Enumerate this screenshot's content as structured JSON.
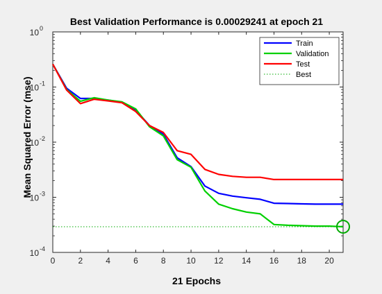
{
  "chart_data": {
    "type": "line",
    "title": "Best Validation Performance is 0.00029241 at epoch 21",
    "xlabel": "21 Epochs",
    "ylabel": "Mean Squared Error  (mse)",
    "xlim": [
      0,
      21
    ],
    "ylim": [
      0.0001,
      1
    ],
    "yscale": "log",
    "xticks": [
      "0",
      "2",
      "4",
      "6",
      "8",
      "10",
      "12",
      "14",
      "16",
      "18",
      "20"
    ],
    "yticks": [
      {
        "base": "10",
        "exp": "0",
        "value": 1
      },
      {
        "base": "10",
        "exp": "-1",
        "value": 0.1
      },
      {
        "base": "10",
        "exp": "-2",
        "value": 0.01
      },
      {
        "base": "10",
        "exp": "-3",
        "value": 0.001
      },
      {
        "base": "10",
        "exp": "-4",
        "value": 0.0001
      }
    ],
    "x": [
      0,
      1,
      2,
      3,
      4,
      5,
      6,
      7,
      8,
      9,
      10,
      11,
      12,
      13,
      14,
      15,
      16,
      17,
      18,
      19,
      20,
      21
    ],
    "series": [
      {
        "name": "Train",
        "color": "#0000ff",
        "style": "solid",
        "values": [
          0.26,
          0.095,
          0.062,
          0.062,
          0.058,
          0.053,
          0.038,
          0.02,
          0.014,
          0.0052,
          0.0036,
          0.0016,
          0.00118,
          0.00105,
          0.00098,
          0.00092,
          0.00078,
          0.00077,
          0.00076,
          0.00075,
          0.00075,
          0.00075
        ]
      },
      {
        "name": "Validation",
        "color": "#00d000",
        "style": "solid",
        "values": [
          0.26,
          0.09,
          0.055,
          0.064,
          0.058,
          0.054,
          0.04,
          0.019,
          0.013,
          0.0048,
          0.0035,
          0.0013,
          0.00075,
          0.00062,
          0.00054,
          0.0005,
          0.00032,
          0.00031,
          0.000305,
          0.0003,
          0.0003,
          0.00029241
        ]
      },
      {
        "name": "Test",
        "color": "#ff0000",
        "style": "solid",
        "values": [
          0.26,
          0.088,
          0.05,
          0.06,
          0.056,
          0.052,
          0.036,
          0.02,
          0.015,
          0.007,
          0.006,
          0.0032,
          0.0026,
          0.0024,
          0.0023,
          0.0023,
          0.0021,
          0.0021,
          0.0021,
          0.0021,
          0.0021,
          0.0021
        ]
      },
      {
        "name": "Best",
        "color": "#00aa00",
        "style": "dotted",
        "value": 0.00029241,
        "epoch": 21
      }
    ],
    "legend": "top-right",
    "grid": false
  }
}
